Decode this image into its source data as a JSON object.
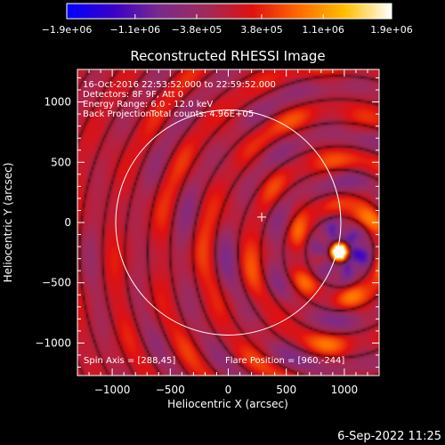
{
  "chart_data": {
    "type": "heatmap",
    "title": "Reconstructed RHESSI Image",
    "xlabel": "Heliocentric X (arcsec)",
    "ylabel": "Heliocentric Y (arcsec)",
    "xlim": [
      -1300,
      1300
    ],
    "ylim": [
      -1270,
      1270
    ],
    "x_ticks": [
      -1000,
      -500,
      0,
      500,
      1000
    ],
    "x_tick_labels": [
      "−1000",
      "−500",
      "0",
      "500",
      "1000"
    ],
    "y_ticks": [
      -1000,
      -500,
      0,
      500,
      1000
    ],
    "y_tick_labels": [
      "−1000",
      "−500",
      "0",
      "500",
      "1000"
    ],
    "colorbar": {
      "min": -1900000,
      "max": 1900000,
      "tick_values": [
        -1900000,
        -1100000,
        -380000,
        380000,
        1100000,
        1900000
      ],
      "tick_labels": [
        "−1.9e+06",
        "−1.1e+06",
        "−3.8e+05",
        "3.8e+05",
        "1.1e+06",
        "1.9e+06"
      ],
      "colormap": [
        "#0000ff",
        "#3a00c8",
        "#7a2a8c",
        "#a02a5a",
        "#e01010",
        "#ff6a00",
        "#ffc000",
        "#ffffff"
      ]
    },
    "annotations": [
      "16-Oct-2016 22:53:52.000 to 22:59:52.000",
      "Detectors: 8F 9F, Att 0",
      "Energy Range: 6.0 - 12.0 keV",
      "Back Projection",
      "Total counts: 4.96E+05"
    ],
    "spin_axis_label": "Spin Axis = [288,45]",
    "flare_position_label": "Flare Position = [960,-244]",
    "spin_axis": [
      288,
      45
    ],
    "flare_position": [
      960,
      -244
    ],
    "solar_limb_radius_arcsec": 970,
    "grid": false
  },
  "footer": {
    "timestamp": "6-Sep-2022 11:25"
  }
}
